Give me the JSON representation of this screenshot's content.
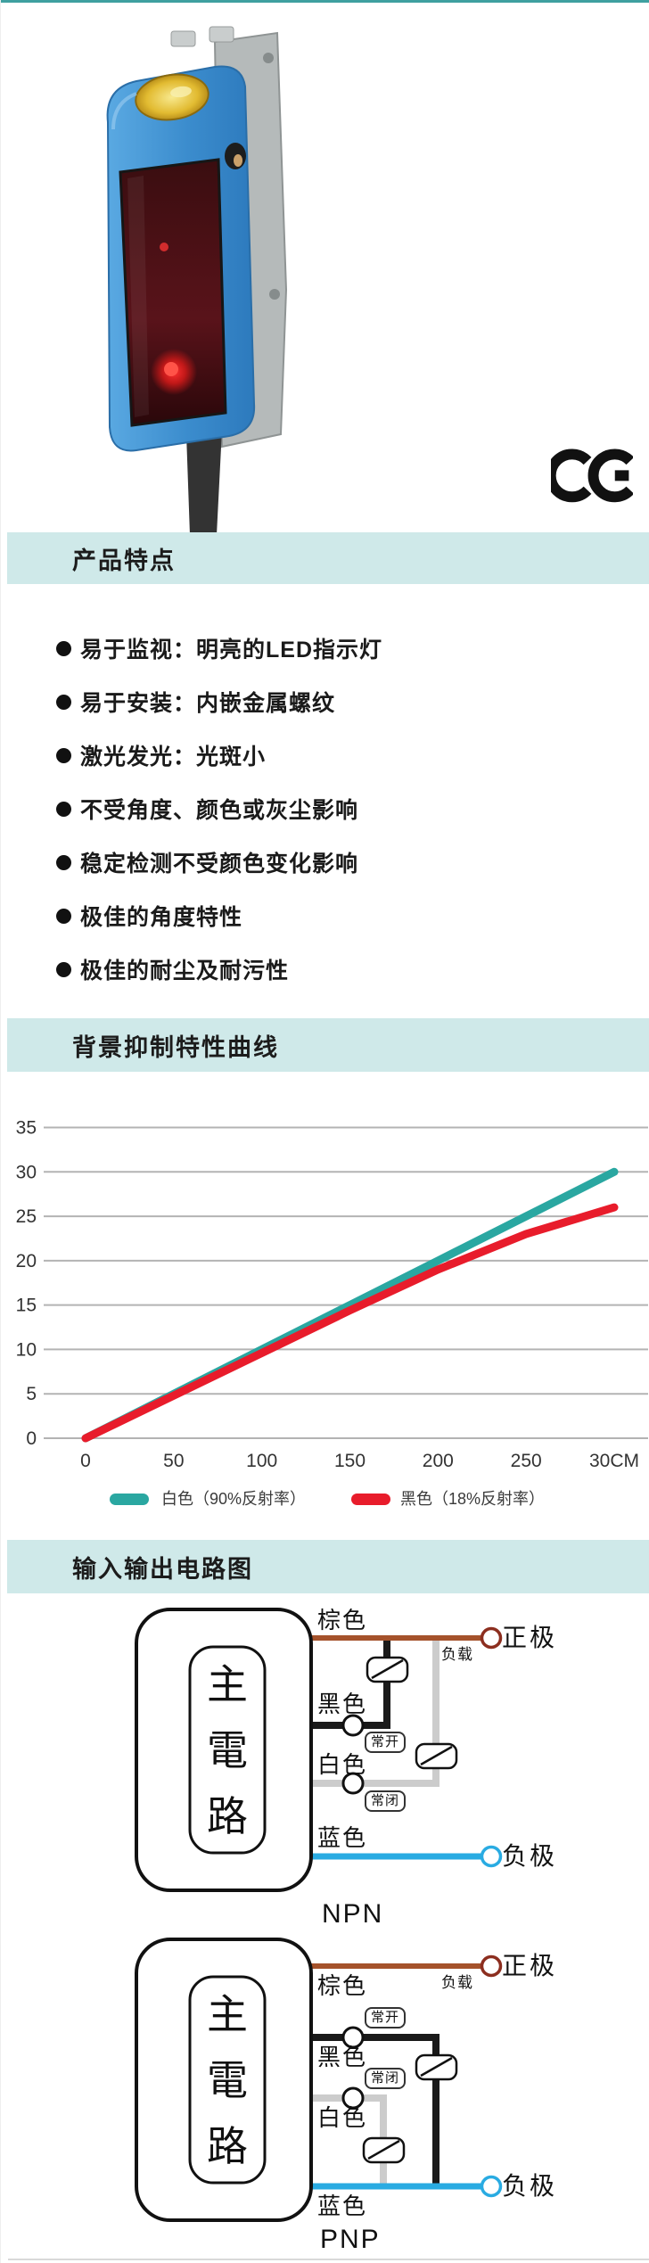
{
  "page": {
    "accent_teal": "#3fa0a0",
    "band_bg": "#cfe9e9"
  },
  "ce_mark": "CE",
  "sections": {
    "features": {
      "title": "产品特点",
      "items": [
        "易于监视：明亮的LED指示灯",
        "易于安装：内嵌金属螺纹",
        "激光发光：光斑小",
        "不受角度、颜色或灰尘影响",
        "稳定检测不受颜色变化影响",
        "极佳的角度特性",
        "极佳的耐尘及耐污性"
      ]
    },
    "curve": {
      "title": "背景抑制特性曲线"
    },
    "circuit": {
      "title": "输入输出电路图"
    }
  },
  "chart_data": {
    "type": "line",
    "title": "背景抑制特性曲线",
    "x": [
      0,
      50,
      100,
      150,
      200,
      250,
      300
    ],
    "x_tick_labels": [
      "0",
      "50",
      "100",
      "150",
      "200",
      "250",
      "30CM"
    ],
    "y_ticks": [
      0,
      5,
      10,
      15,
      20,
      25,
      30,
      35
    ],
    "ylim": [
      0,
      35
    ],
    "grid": true,
    "legend_position": "bottom",
    "series": [
      {
        "name": "白色（90%反射率）",
        "color": "#2aa7a1",
        "values": [
          0,
          5,
          10,
          15,
          20,
          25,
          30
        ]
      },
      {
        "name": "黑色（18%反射率）",
        "color": "#e81c2b",
        "values": [
          0,
          4.8,
          9.6,
          14.4,
          19,
          23,
          26
        ]
      }
    ]
  },
  "circuits": {
    "npn": {
      "name": "NPN",
      "main_label": "主電路",
      "labels": {
        "brown": "棕色",
        "black": "黑色",
        "white": "白色",
        "blue": "蓝色",
        "positive": "正极",
        "negative": "负极",
        "load": "负载",
        "normally_open": "常开",
        "normally_closed": "常闭"
      }
    },
    "pnp": {
      "name": "PNP",
      "main_label": "主電路",
      "labels": {
        "brown": "棕色",
        "black": "黑色",
        "white": "白色",
        "blue": "蓝色",
        "positive": "正极",
        "negative": "负极",
        "load": "负载",
        "normally_open": "常开",
        "normally_closed": "常闭"
      }
    }
  },
  "colors": {
    "brown_wire": "#a5522b",
    "blue_wire": "#29abe2",
    "gray_wire": "#cccccc",
    "black_wire": "#1a1a1a",
    "positive_terminal": "#8c2e1f",
    "gridline": "#b3b3b3"
  }
}
